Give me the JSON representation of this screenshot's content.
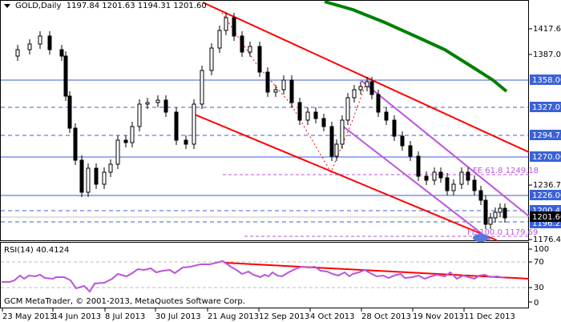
{
  "header": {
    "symbol_timeframe": "GOLD,Daily",
    "ohlc": "1197.84 1201.63 1194.31 1201.60"
  },
  "rsi_panel": {
    "label": "RSI(14) 40.4124",
    "axis": [
      "100",
      "70",
      "30",
      "0"
    ]
  },
  "copyright": "GCM MetaTrader, © 2001-2013, MetaQuotes Software Corp.",
  "price_axis": {
    "plain_ticks": [
      "1417.60",
      "1387.00",
      "1236.70",
      "1176.40"
    ],
    "highlighted_levels": [
      {
        "value": "1358.00",
        "style": "solid"
      },
      {
        "value": "1327.07",
        "style": "dashed"
      },
      {
        "value": "1294.75",
        "style": "dashed"
      },
      {
        "value": "1270.00",
        "style": "solid"
      },
      {
        "value": "1226.00",
        "style": "solid"
      },
      {
        "value": "1200.47",
        "style": "dashed"
      },
      {
        "value": "1196.25",
        "style": "dashed"
      }
    ],
    "current_price": "1201.60"
  },
  "fibo_labels": {
    "fe618": "FE 61.8 1249.18",
    "fe100": "FE 100.0 1179.69"
  },
  "time_axis": [
    "23 May 2013",
    "14 Jun 2013",
    "8 Jul 2013",
    "30 Jul 2013",
    "21 Aug 2013",
    "12 Sep 2013",
    "4 Oct 2013",
    "28 Oct 2013",
    "19 Nov 2013",
    "11 Dec 2013"
  ],
  "colors": {
    "level_line": "#3a62d6",
    "channel": "#ff0000",
    "ma": "#008000",
    "purple_channel": "#bb55dd",
    "rsi": "#bb55dd",
    "current_price_bg": "#000000"
  },
  "chart_data": {
    "type": "candlestick",
    "title": "GOLD, Daily",
    "x_range": [
      "23 May 2013",
      "Dec 2013"
    ],
    "ylim": [
      1170,
      1435
    ],
    "approx_closes": [
      {
        "date": "23 May 2013",
        "close": 1380
      },
      {
        "date": "14 Jun 2013",
        "close": 1380
      },
      {
        "date": "24 Jun 2013",
        "close": 1275
      },
      {
        "date": "28 Jun 2013",
        "close": 1200
      },
      {
        "date": "8 Jul 2013",
        "close": 1240
      },
      {
        "date": "30 Jul 2013",
        "close": 1325
      },
      {
        "date": "21 Aug 2013",
        "close": 1370
      },
      {
        "date": "28 Aug 2013",
        "close": 1418
      },
      {
        "date": "12 Sep 2013",
        "close": 1320
      },
      {
        "date": "4 Oct 2013",
        "close": 1270
      },
      {
        "date": "28 Oct 2013",
        "close": 1355
      },
      {
        "date": "19 Nov 2013",
        "close": 1245
      },
      {
        "date": "11 Dec 2013",
        "close": 1230
      },
      {
        "date": "20 Dec 2013",
        "close": 1190
      },
      {
        "date": "27 Dec 2013",
        "close": 1201.6
      }
    ],
    "horizontal_levels": [
      1358.0,
      1327.07,
      1294.75,
      1270.0,
      1226.0,
      1200.47,
      1196.25
    ],
    "fibonacci_expansion": {
      "61.8": 1249.18,
      "100.0": 1179.69
    },
    "rsi": {
      "period": 14,
      "last": 40.4124,
      "levels": [
        70,
        30
      ],
      "range": [
        0,
        100
      ]
    }
  }
}
